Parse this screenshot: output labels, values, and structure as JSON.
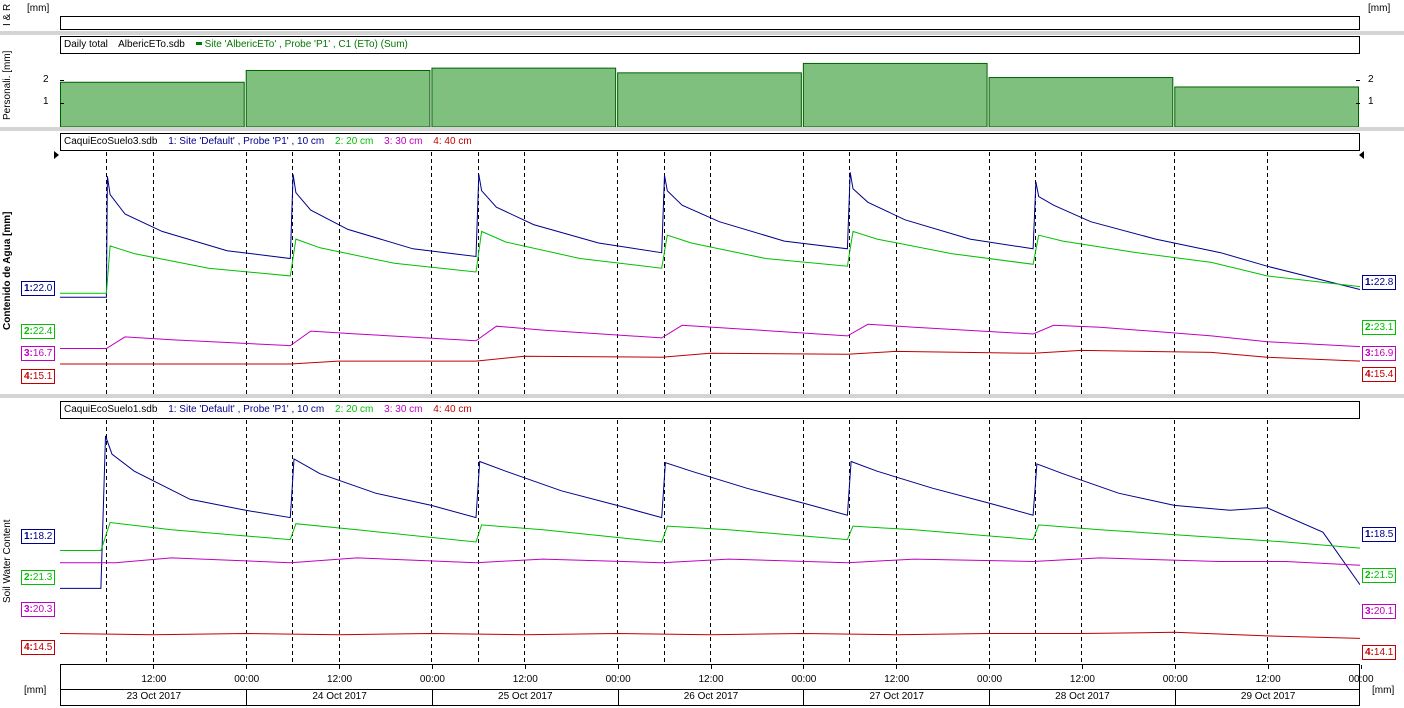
{
  "panels": {
    "ir": {
      "axis_label": "I & R",
      "unit_left": "[mm]",
      "unit_right": "[mm]"
    },
    "personal": {
      "axis_label": "Personali. [mm]",
      "legend_title": "Daily total",
      "legend_file": "AlbericETo.sdb",
      "legend_series": "Site 'AlbericETo' , Probe 'P1' , C1 (ETo) (Sum)",
      "series_color": "#007a00",
      "tick_2": "2",
      "tick_1": "1"
    },
    "suelo3": {
      "axis_label": "Contenido de Agua [mm]",
      "file": "CaquiEcoSuelo3.sdb",
      "legend": [
        {
          "text": "1: Site 'Default' , Probe 'P1' , 10 cm",
          "color": "#00008b"
        },
        {
          "text": "2: 20 cm",
          "color": "#00c000"
        },
        {
          "text": "3: 30 cm",
          "color": "#c000c0"
        },
        {
          "text": "4: 40 cm",
          "color": "#c00000"
        }
      ],
      "left_tags": [
        {
          "num": "1:",
          "val": "22.0",
          "color": "#00008b"
        },
        {
          "num": "2:",
          "val": "22.4",
          "color": "#00c000"
        },
        {
          "num": "3:",
          "val": "16.7",
          "color": "#c000c0"
        },
        {
          "num": "4:",
          "val": "15.1",
          "color": "#c00000"
        }
      ],
      "right_tags": [
        {
          "num": "1:",
          "val": "22.8",
          "color": "#00008b"
        },
        {
          "num": "2:",
          "val": "23.1",
          "color": "#00c000"
        },
        {
          "num": "3:",
          "val": "16.9",
          "color": "#c000c0"
        },
        {
          "num": "4:",
          "val": "15.4",
          "color": "#c00000"
        }
      ]
    },
    "suelo1": {
      "axis_label": "Soil Water Content",
      "file": "CaquiEcoSuelo1.sdb",
      "legend": [
        {
          "text": "1: Site 'Default' , Probe 'P1' , 10 cm",
          "color": "#00008b"
        },
        {
          "text": "2: 20 cm",
          "color": "#00c000"
        },
        {
          "text": "3: 30 cm",
          "color": "#c000c0"
        },
        {
          "text": "4: 40 cm",
          "color": "#c00000"
        }
      ],
      "left_tags": [
        {
          "num": "1:",
          "val": "18.2",
          "color": "#00008b"
        },
        {
          "num": "2:",
          "val": "21.3",
          "color": "#00c000"
        },
        {
          "num": "3:",
          "val": "20.3",
          "color": "#c000c0"
        },
        {
          "num": "4:",
          "val": "14.5",
          "color": "#c00000"
        }
      ],
      "right_tags": [
        {
          "num": "1:",
          "val": "18.5",
          "color": "#00008b"
        },
        {
          "num": "2:",
          "val": "21.5",
          "color": "#00c000"
        },
        {
          "num": "3:",
          "val": "20.1",
          "color": "#c000c0"
        },
        {
          "num": "4:",
          "val": "14.1",
          "color": "#c00000"
        }
      ]
    }
  },
  "axis": {
    "unit_left": "[mm]",
    "unit_right": "[mm]",
    "time_ticks": [
      "12:00",
      "00:00",
      "12:00",
      "00:00",
      "12:00",
      "00:00",
      "12:00",
      "00:00",
      "12:00",
      "00:00",
      "12:00",
      "00:00",
      "12:00",
      "00:00"
    ],
    "days": [
      "23 Oct 2017",
      "24 Oct 2017",
      "25 Oct 2017",
      "26 Oct 2017",
      "27 Oct 2017",
      "28 Oct 2017",
      "29 Oct 2017"
    ]
  },
  "chart_data": [
    {
      "type": "bar",
      "title": "Daily total",
      "ylabel": "Personali. [mm]",
      "categories": [
        "23 Oct 2017",
        "24 Oct 2017",
        "25 Oct 2017",
        "26 Oct 2017",
        "27 Oct 2017",
        "28 Oct 2017",
        "29 Oct 2017"
      ],
      "values": [
        1.9,
        2.4,
        2.5,
        2.3,
        2.7,
        2.1,
        1.7
      ],
      "ylim": [
        0,
        3.1
      ]
    },
    {
      "type": "line",
      "title": "CaquiEcoSuelo3.sdb",
      "ylabel": "Contenido de Agua [mm]",
      "x_unit": "days since 23 Oct 2017 00:00",
      "series": [
        {
          "name": "1: Site 'Default' , Probe 'P1' , 10 cm",
          "color": "#00008b",
          "points": [
            [
              0,
              22.0
            ],
            [
              0.25,
              22.0
            ],
            [
              0.255,
              34.5
            ],
            [
              0.27,
              32.6
            ],
            [
              0.35,
              30.6
            ],
            [
              0.55,
              28.8
            ],
            [
              0.9,
              26.8
            ],
            [
              1.24,
              26.0
            ],
            [
              1.255,
              34.7
            ],
            [
              1.27,
              32.8
            ],
            [
              1.35,
              31.0
            ],
            [
              1.55,
              29.0
            ],
            [
              1.9,
              27.0
            ],
            [
              2.24,
              26.2
            ],
            [
              2.255,
              34.7
            ],
            [
              2.27,
              33.0
            ],
            [
              2.35,
              31.3
            ],
            [
              2.55,
              29.5
            ],
            [
              2.9,
              27.6
            ],
            [
              3.24,
              26.6
            ],
            [
              3.255,
              34.6
            ],
            [
              3.27,
              33.0
            ],
            [
              3.35,
              31.5
            ],
            [
              3.55,
              29.8
            ],
            [
              3.9,
              27.8
            ],
            [
              4.24,
              27.0
            ],
            [
              4.255,
              34.9
            ],
            [
              4.27,
              33.2
            ],
            [
              4.35,
              31.8
            ],
            [
              4.55,
              30.0
            ],
            [
              4.9,
              28.0
            ],
            [
              5.24,
              27.0
            ],
            [
              5.255,
              33.9
            ],
            [
              5.27,
              32.4
            ],
            [
              5.35,
              31.5
            ],
            [
              5.55,
              29.8
            ],
            [
              5.9,
              28.0
            ],
            [
              6.25,
              26.6
            ],
            [
              6.5,
              25.2
            ],
            [
              7.0,
              22.8
            ]
          ]
        },
        {
          "name": "2: 20 cm",
          "color": "#00c000",
          "points": [
            [
              0,
              22.4
            ],
            [
              0.25,
              22.4
            ],
            [
              0.27,
              27.3
            ],
            [
              0.4,
              26.5
            ],
            [
              0.8,
              25.0
            ],
            [
              1.24,
              24.2
            ],
            [
              1.27,
              28.0
            ],
            [
              1.4,
              27.1
            ],
            [
              1.8,
              25.5
            ],
            [
              2.24,
              24.6
            ],
            [
              2.27,
              28.8
            ],
            [
              2.4,
              27.7
            ],
            [
              2.8,
              26.0
            ],
            [
              3.24,
              25.0
            ],
            [
              3.27,
              28.4
            ],
            [
              3.4,
              27.6
            ],
            [
              3.8,
              26.0
            ],
            [
              4.24,
              25.2
            ],
            [
              4.27,
              28.8
            ],
            [
              4.4,
              28.0
            ],
            [
              4.8,
              26.5
            ],
            [
              5.24,
              25.4
            ],
            [
              5.27,
              28.4
            ],
            [
              5.4,
              27.8
            ],
            [
              5.8,
              26.6
            ],
            [
              6.2,
              25.6
            ],
            [
              6.5,
              24.2
            ],
            [
              7.0,
              23.1
            ]
          ]
        },
        {
          "name": "3: 30 cm",
          "color": "#c000c0",
          "points": [
            [
              0,
              16.7
            ],
            [
              0.25,
              16.7
            ],
            [
              0.35,
              17.9
            ],
            [
              0.6,
              17.6
            ],
            [
              1.24,
              17.0
            ],
            [
              1.35,
              18.5
            ],
            [
              1.6,
              18.2
            ],
            [
              2.24,
              17.5
            ],
            [
              2.35,
              19.0
            ],
            [
              2.6,
              18.6
            ],
            [
              3.24,
              17.8
            ],
            [
              3.35,
              19.1
            ],
            [
              3.6,
              18.8
            ],
            [
              4.24,
              18.0
            ],
            [
              4.35,
              19.2
            ],
            [
              4.6,
              18.9
            ],
            [
              5.24,
              18.2
            ],
            [
              5.35,
              19.1
            ],
            [
              5.6,
              18.9
            ],
            [
              6.2,
              18.0
            ],
            [
              6.5,
              17.4
            ],
            [
              7.0,
              16.9
            ]
          ]
        },
        {
          "name": "4: 40 cm",
          "color": "#c00000",
          "points": [
            [
              0,
              15.1
            ],
            [
              1.24,
              15.1
            ],
            [
              1.5,
              15.4
            ],
            [
              2.24,
              15.4
            ],
            [
              2.5,
              15.9
            ],
            [
              3.24,
              15.8
            ],
            [
              3.5,
              16.2
            ],
            [
              4.24,
              16.1
            ],
            [
              4.5,
              16.4
            ],
            [
              5.24,
              16.2
            ],
            [
              5.5,
              16.5
            ],
            [
              6.2,
              16.3
            ],
            [
              6.5,
              15.8
            ],
            [
              7.0,
              15.4
            ]
          ]
        }
      ]
    },
    {
      "type": "line",
      "title": "CaquiEcoSuelo1.sdb",
      "ylabel": "Soil Water Content",
      "x_unit": "days since 23 Oct 2017 00:00",
      "series": [
        {
          "name": "1: Site 'Default' , Probe 'P1' , 10 cm",
          "color": "#00008b",
          "points": [
            [
              0,
              18.2
            ],
            [
              0.22,
              18.2
            ],
            [
              0.245,
              30.7
            ],
            [
              0.28,
              29.2
            ],
            [
              0.4,
              27.8
            ],
            [
              0.7,
              25.5
            ],
            [
              1.0,
              24.6
            ],
            [
              1.24,
              24.0
            ],
            [
              1.26,
              28.8
            ],
            [
              1.4,
              27.6
            ],
            [
              1.7,
              26.0
            ],
            [
              2.0,
              25.0
            ],
            [
              2.24,
              24.0
            ],
            [
              2.26,
              28.6
            ],
            [
              2.4,
              27.8
            ],
            [
              2.7,
              26.2
            ],
            [
              3.0,
              25.0
            ],
            [
              3.24,
              24.0
            ],
            [
              3.26,
              28.5
            ],
            [
              3.4,
              27.8
            ],
            [
              3.7,
              26.4
            ],
            [
              4.0,
              25.2
            ],
            [
              4.24,
              24.2
            ],
            [
              4.26,
              28.6
            ],
            [
              4.4,
              27.8
            ],
            [
              4.7,
              26.4
            ],
            [
              5.0,
              25.2
            ],
            [
              5.24,
              24.2
            ],
            [
              5.26,
              28.4
            ],
            [
              5.4,
              27.6
            ],
            [
              5.7,
              26.0
            ],
            [
              6.0,
              25.0
            ],
            [
              6.3,
              24.6
            ],
            [
              6.5,
              24.8
            ],
            [
              6.8,
              22.8
            ],
            [
              7.0,
              18.5
            ]
          ]
        },
        {
          "name": "2: 20 cm",
          "color": "#00c000",
          "points": [
            [
              0,
              21.3
            ],
            [
              0.22,
              21.3
            ],
            [
              0.27,
              23.6
            ],
            [
              0.6,
              23.0
            ],
            [
              1.24,
              22.2
            ],
            [
              1.27,
              23.5
            ],
            [
              1.6,
              23.0
            ],
            [
              2.24,
              22.0
            ],
            [
              2.27,
              23.4
            ],
            [
              2.6,
              23.0
            ],
            [
              3.24,
              22.0
            ],
            [
              3.27,
              23.3
            ],
            [
              3.6,
              23.0
            ],
            [
              4.24,
              22.2
            ],
            [
              4.27,
              23.3
            ],
            [
              4.6,
              23.0
            ],
            [
              5.24,
              22.2
            ],
            [
              5.27,
              23.4
            ],
            [
              5.6,
              23.0
            ],
            [
              6.2,
              22.4
            ],
            [
              6.6,
              22.0
            ],
            [
              7.0,
              21.5
            ]
          ]
        },
        {
          "name": "3: 30 cm",
          "color": "#c000c0",
          "points": [
            [
              0,
              20.3
            ],
            [
              0.3,
              20.3
            ],
            [
              0.6,
              20.7
            ],
            [
              1.24,
              20.3
            ],
            [
              1.6,
              20.7
            ],
            [
              2.24,
              20.3
            ],
            [
              2.6,
              20.6
            ],
            [
              3.24,
              20.3
            ],
            [
              3.6,
              20.6
            ],
            [
              4.24,
              20.3
            ],
            [
              4.6,
              20.6
            ],
            [
              5.24,
              20.4
            ],
            [
              5.6,
              20.7
            ],
            [
              6.24,
              20.4
            ],
            [
              6.6,
              20.4
            ],
            [
              7.0,
              20.1
            ]
          ]
        },
        {
          "name": "4: 40 cm",
          "color": "#c00000",
          "points": [
            [
              0,
              14.5
            ],
            [
              0.5,
              14.4
            ],
            [
              1.0,
              14.5
            ],
            [
              1.5,
              14.4
            ],
            [
              2.0,
              14.5
            ],
            [
              2.5,
              14.4
            ],
            [
              3.0,
              14.5
            ],
            [
              3.5,
              14.4
            ],
            [
              4.0,
              14.5
            ],
            [
              4.5,
              14.4
            ],
            [
              5.0,
              14.5
            ],
            [
              5.5,
              14.5
            ],
            [
              6.0,
              14.6
            ],
            [
              6.5,
              14.3
            ],
            [
              7.0,
              14.1
            ]
          ]
        }
      ]
    }
  ]
}
